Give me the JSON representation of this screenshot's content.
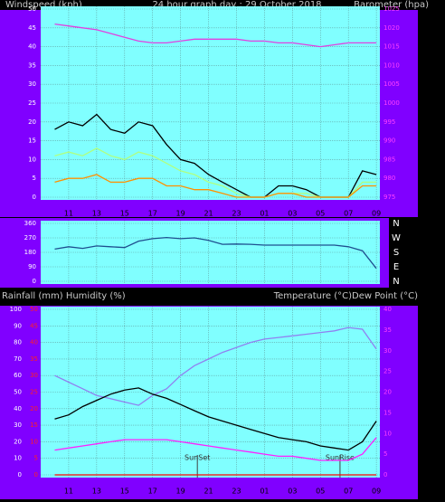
{
  "chart_data": [
    {
      "type": "line",
      "title": "24 hour graph day : 29 October 2018",
      "ylabel": "Windspeed (kph)",
      "y2label": "Barometer (hpa)",
      "x": [
        10,
        11,
        12,
        13,
        14,
        15,
        16,
        17,
        18,
        19,
        20,
        21,
        22,
        23,
        24,
        25,
        26,
        27,
        28,
        29,
        30,
        31,
        32,
        33
      ],
      "xlim": [
        9,
        33.25
      ],
      "xticks": [
        11,
        13,
        15,
        17,
        19,
        21,
        23,
        {
          "value": 25,
          "label": "01"
        },
        {
          "value": 27,
          "label": "03"
        },
        {
          "value": 29,
          "label": "05"
        },
        {
          "value": 31,
          "label": "07"
        },
        {
          "value": 33,
          "label": "09"
        }
      ],
      "ylim": [
        0,
        50
      ],
      "yticks": [
        0,
        5,
        10,
        15,
        20,
        25,
        30,
        35,
        40,
        45,
        50
      ],
      "y2lim": [
        975,
        1025
      ],
      "y2ticks": [
        975,
        980,
        985,
        990,
        995,
        1000,
        1005,
        1010,
        1015,
        1020,
        1025
      ],
      "grid": true,
      "series": [
        {
          "color": "#000000",
          "values": [
            18,
            20,
            19,
            22,
            18,
            17,
            20,
            19,
            14,
            10,
            9,
            6,
            4,
            2,
            0,
            0,
            3,
            3,
            2,
            0,
            0,
            0,
            7,
            6
          ]
        },
        {
          "color": "#b0ff80",
          "values": [
            11,
            12,
            11,
            13,
            11,
            10,
            12,
            11,
            9,
            7,
            6,
            4,
            3,
            1,
            0,
            0,
            1,
            1,
            1,
            0,
            0,
            0,
            4,
            4
          ]
        },
        {
          "color": "#ff9000",
          "values": [
            4,
            5,
            5,
            6,
            4,
            4,
            5,
            5,
            3,
            3,
            2,
            2,
            1,
            0,
            0,
            0,
            1,
            1,
            0,
            0,
            0,
            0,
            3,
            3
          ]
        },
        {
          "color": "#e040e0",
          "axis": "y2",
          "values": [
            1021,
            1020.5,
            1020,
            1019.5,
            1018.5,
            1017.5,
            1016.5,
            1016,
            1016,
            1016.5,
            1017,
            1017,
            1017,
            1017,
            1016.5,
            1016.5,
            1016,
            1016,
            1015.5,
            1015,
            1015.5,
            1016,
            1016,
            1016
          ]
        }
      ]
    },
    {
      "type": "line",
      "x": [
        10,
        11,
        12,
        13,
        14,
        15,
        16,
        17,
        18,
        19,
        20,
        21,
        22,
        23,
        24,
        25,
        26,
        27,
        28,
        29,
        30,
        31,
        32,
        33
      ],
      "xlim": [
        9,
        33.25
      ],
      "xticks": [
        11,
        13,
        15,
        17,
        19,
        21,
        23,
        25,
        27,
        29,
        31,
        33
      ],
      "ylim": [
        0,
        360
      ],
      "yticks": [
        0,
        90,
        180,
        270,
        360
      ],
      "y2lim": [
        0,
        360
      ],
      "y2ticks": [
        {
          "value": 360,
          "label": "N"
        },
        {
          "value": 270,
          "label": "W"
        },
        {
          "value": 180,
          "label": "S"
        },
        {
          "value": 90,
          "label": "E"
        },
        {
          "value": 0,
          "label": "N"
        }
      ],
      "grid": true,
      "series": [
        {
          "color": "#1f4f8f",
          "values": [
            200,
            215,
            205,
            220,
            215,
            210,
            250,
            265,
            272,
            265,
            270,
            255,
            230,
            232,
            230,
            225,
            225,
            225,
            225,
            225,
            225,
            215,
            190,
            80
          ]
        }
      ]
    },
    {
      "type": "line",
      "ylabel": "Rainfall (mm)  Humidity (%)",
      "y2label": "Temperature (°C)Dew Point (°C)",
      "x": [
        10,
        11,
        12,
        13,
        14,
        15,
        16,
        17,
        18,
        19,
        20,
        21,
        22,
        23,
        24,
        25,
        26,
        27,
        28,
        29,
        30,
        31,
        32,
        33
      ],
      "xlim": [
        9,
        33.25
      ],
      "xticks": [
        11,
        13,
        15,
        17,
        19,
        21,
        23,
        {
          "value": 25,
          "label": "01"
        },
        {
          "value": 27,
          "label": "03"
        },
        {
          "value": 29,
          "label": "05"
        },
        {
          "value": 31,
          "label": "07"
        },
        {
          "value": 33,
          "label": "09"
        }
      ],
      "ylim": [
        0,
        100
      ],
      "yticks": [
        0,
        10,
        20,
        30,
        40,
        50,
        60,
        70,
        80,
        90,
        100
      ],
      "y3lim": [
        0,
        50
      ],
      "y3ticks": [
        0,
        5,
        10,
        15,
        20,
        25,
        30,
        35,
        40,
        45,
        50
      ],
      "y2lim": [
        0,
        40
      ],
      "y2ticks": [
        0,
        5,
        10,
        15,
        20,
        25,
        30,
        35,
        40
      ],
      "grid": true,
      "annotations": [
        {
          "text": "SunSet",
          "x": 20.2
        },
        {
          "text": "SunRise",
          "x": 30.4
        }
      ],
      "series": [
        {
          "color": "#9080f0",
          "values": [
            60,
            56,
            52,
            48,
            46,
            44,
            42,
            48,
            52,
            60,
            66,
            70,
            74,
            77,
            80,
            82,
            83,
            84,
            85,
            86,
            87,
            89,
            88,
            76
          ]
        },
        {
          "color": "#000000",
          "axis": "y2",
          "values": [
            13.5,
            14.5,
            16.5,
            18,
            19.5,
            20.5,
            21,
            19.5,
            18.5,
            17,
            15.5,
            14,
            13,
            12,
            11,
            10,
            9,
            8.5,
            8,
            7,
            6.5,
            6,
            8,
            13
          ]
        },
        {
          "color": "#ff20ff",
          "axis": "y2",
          "values": [
            6,
            6.5,
            7,
            7.5,
            8,
            8.5,
            8.5,
            8.5,
            8.5,
            8,
            7.5,
            7,
            6.5,
            6,
            5.5,
            5,
            4.5,
            4.5,
            4,
            3.5,
            3.5,
            3.5,
            5,
            9
          ]
        },
        {
          "color": "#ff0000",
          "axis": "y3",
          "values": [
            0,
            0,
            0,
            0,
            0,
            0,
            0,
            0,
            0,
            0,
            0,
            0,
            0,
            0,
            0,
            0,
            0,
            0,
            0,
            0,
            0,
            0,
            0,
            0
          ]
        }
      ]
    }
  ]
}
